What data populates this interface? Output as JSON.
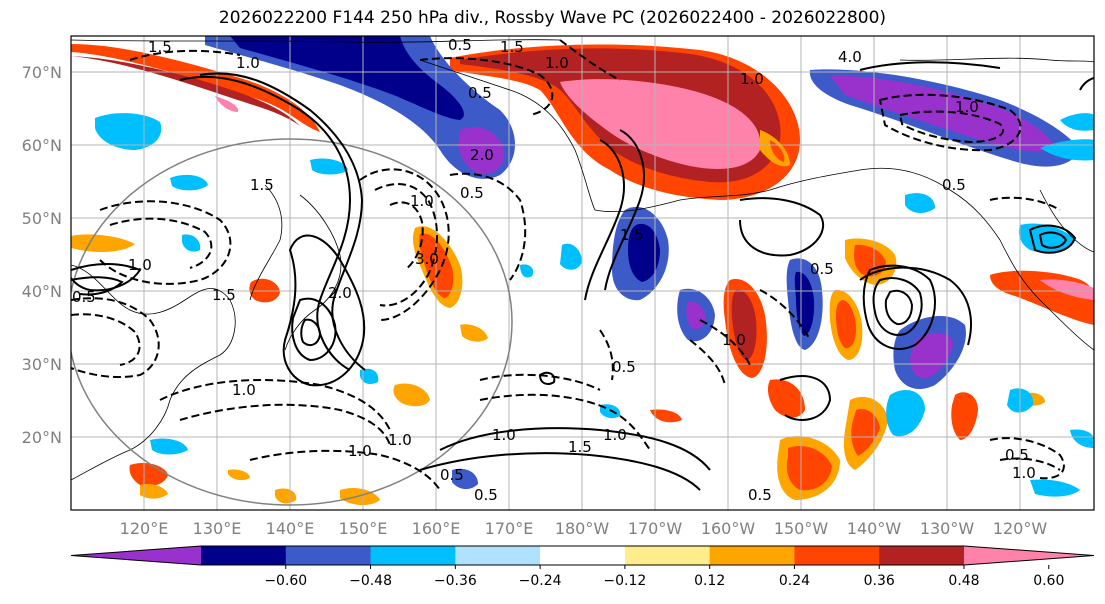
{
  "title": "2026022200 F144 250 hPa div., Rossby Wave PC (2026022400 - 2026022800)",
  "lat_labels": [
    "70°N",
    "60°N",
    "50°N",
    "40°N",
    "30°N",
    "20°N"
  ],
  "lon_labels": [
    "120°E",
    "130°E",
    "140°E",
    "150°E",
    "160°E",
    "170°E",
    "180°W",
    "170°W",
    "160°W",
    "150°W",
    "140°W",
    "130°W",
    "120°W"
  ],
  "colorbar": {
    "tick_labels": [
      "−0.60",
      "−0.48",
      "−0.36",
      "−0.24",
      "−0.12",
      "0.12",
      "0.24",
      "0.36",
      "0.48",
      "0.60"
    ],
    "colors": [
      "#9932cc",
      "#00008b",
      "#3c5ac8",
      "#00bfff",
      "#b0e2ff",
      "#ffffff",
      "#ffec8b",
      "#ffa500",
      "#ff4500",
      "#b22222",
      "#ff82ab"
    ]
  },
  "contour_labels": [
    "1.5",
    "1.0",
    "0.5",
    "1.5",
    "4.0",
    "1.0",
    "1.0",
    "0.5",
    "2.0",
    "1.0",
    "1.5",
    "1.5",
    "2.0",
    "3.0",
    "1.0",
    "1.0",
    "1.5",
    "0.5",
    "0.5",
    "0.5",
    "1.0",
    "1.0",
    "0.5",
    "1.0",
    "1.5",
    "1.0",
    "0.5",
    "0.5",
    "1.0",
    "0.5",
    "0.5",
    "1.0",
    "0.5",
    "1.0"
  ]
}
